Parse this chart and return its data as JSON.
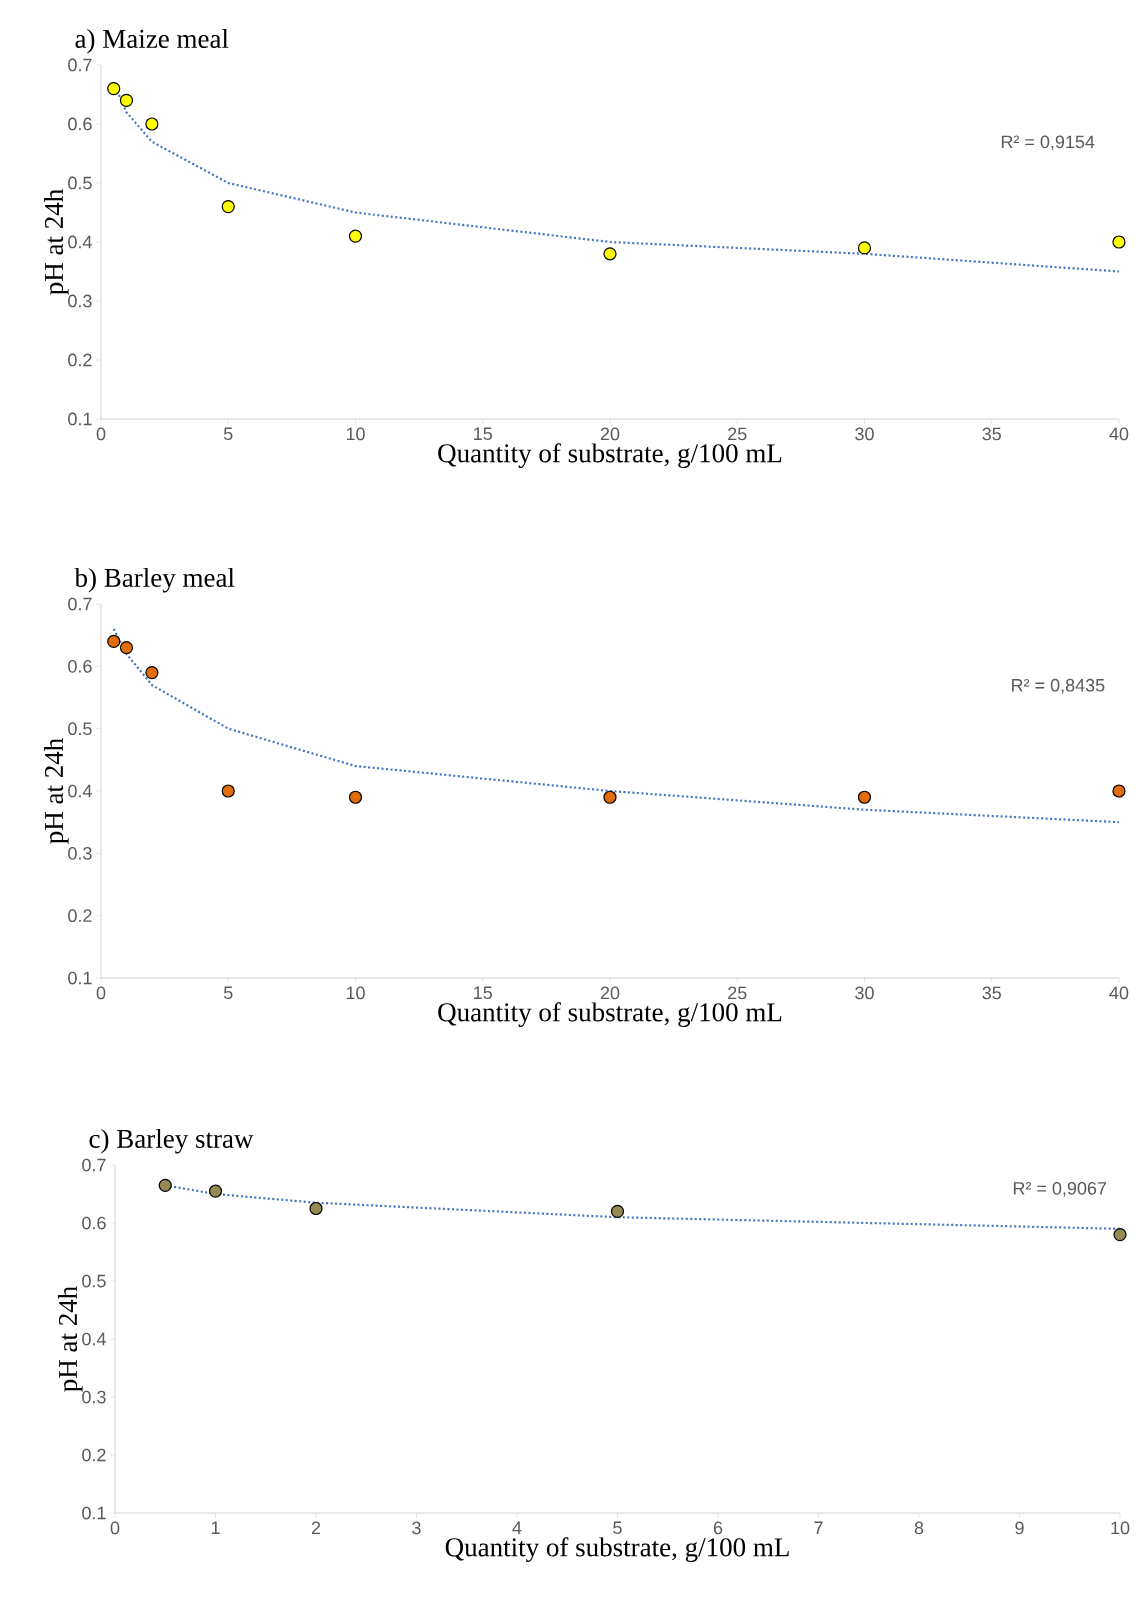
{
  "chart_data": [
    {
      "type": "scatter",
      "title": "a) Maize meal",
      "xlabel": "Quantity of substrate, g/100 mL",
      "ylabel": "pH at 24h",
      "xlim": [
        0,
        40
      ],
      "xticks": [
        0,
        5,
        10,
        15,
        20,
        25,
        30,
        35,
        40
      ],
      "ylim": [
        0.1,
        0.7
      ],
      "yticks": [
        0.1,
        0.2,
        0.3,
        0.4,
        0.5,
        0.6,
        0.7
      ],
      "annotations": [
        "R² = 0,9154"
      ],
      "series": [
        {
          "type": "scatter",
          "marker": "circle",
          "color": "#ffff00",
          "x": [
            0.5,
            1,
            2,
            5,
            10,
            20,
            30,
            40
          ],
          "values": [
            0.66,
            0.64,
            0.6,
            0.46,
            0.41,
            0.38,
            0.39,
            0.4
          ]
        },
        {
          "type": "line",
          "marker": "none",
          "line_style": "dotted",
          "color": "#4472c4",
          "x": [
            0.5,
            1,
            2,
            5,
            10,
            20,
            30,
            40
          ],
          "values": [
            0.67,
            0.62,
            0.57,
            0.5,
            0.45,
            0.4,
            0.38,
            0.35
          ]
        }
      ]
    },
    {
      "type": "scatter",
      "title": "b) Barley meal",
      "xlabel": "Quantity of substrate, g/100 mL",
      "ylabel": "pH at 24h",
      "xlim": [
        0,
        40
      ],
      "xticks": [
        0,
        5,
        10,
        15,
        20,
        25,
        30,
        35,
        40
      ],
      "ylim": [
        0.1,
        0.7
      ],
      "yticks": [
        0.1,
        0.2,
        0.3,
        0.4,
        0.5,
        0.6,
        0.7
      ],
      "annotations": [
        "R² = 0,8435"
      ],
      "series": [
        {
          "type": "scatter",
          "marker": "circle",
          "color": "#e36c0a",
          "x": [
            0.5,
            1,
            2,
            5,
            10,
            20,
            30,
            40
          ],
          "values": [
            0.64,
            0.63,
            0.59,
            0.4,
            0.39,
            0.39,
            0.39,
            0.4
          ]
        },
        {
          "type": "line",
          "marker": "none",
          "line_style": "dotted",
          "color": "#4472c4",
          "x": [
            0.5,
            1,
            2,
            5,
            10,
            20,
            30,
            40
          ],
          "values": [
            0.66,
            0.62,
            0.57,
            0.5,
            0.44,
            0.4,
            0.37,
            0.35
          ]
        }
      ]
    },
    {
      "type": "scatter",
      "title": "c) Barley straw",
      "xlabel": "Quantity of substrate, g/100 mL",
      "ylabel": "pH at 24h",
      "xlim": [
        0,
        10
      ],
      "xticks": [
        0,
        1,
        2,
        3,
        4,
        5,
        6,
        7,
        8,
        9,
        10
      ],
      "ylim": [
        0.1,
        0.7
      ],
      "yticks": [
        0.1,
        0.2,
        0.3,
        0.4,
        0.5,
        0.6,
        0.7
      ],
      "annotations": [
        "R² = 0,9067"
      ],
      "series": [
        {
          "type": "scatter",
          "marker": "circle",
          "color": "#948a54",
          "x": [
            0.5,
            1,
            2,
            5,
            10
          ],
          "values": [
            0.665,
            0.655,
            0.625,
            0.62,
            0.58
          ]
        },
        {
          "type": "line",
          "marker": "none",
          "line_style": "dotted",
          "color": "#4472c4",
          "x": [
            0.5,
            1,
            2,
            5,
            10
          ],
          "values": [
            0.665,
            0.65,
            0.635,
            0.61,
            0.59
          ]
        }
      ]
    }
  ]
}
